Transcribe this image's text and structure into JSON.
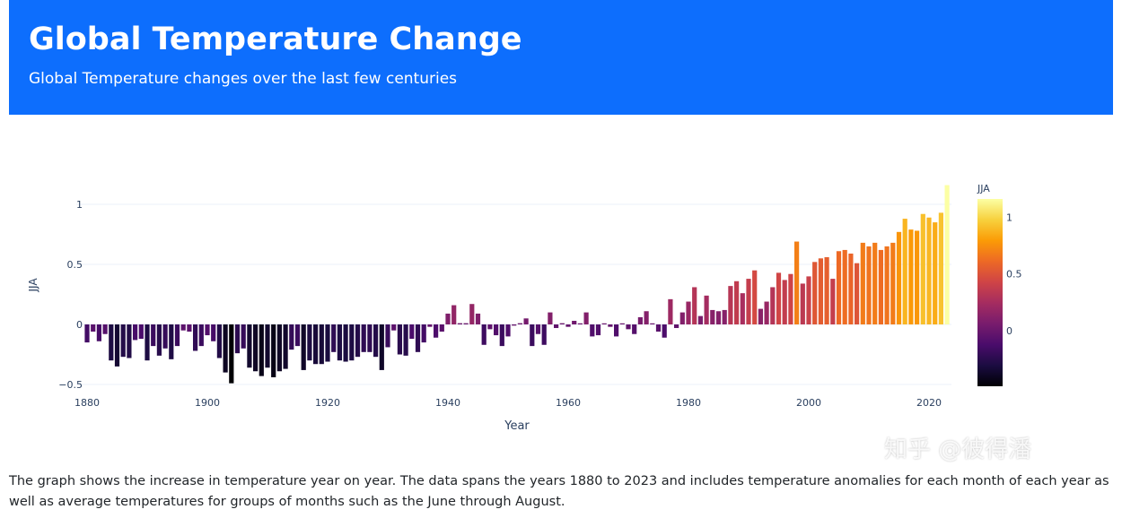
{
  "header": {
    "title": "Global Temperature Change",
    "subtitle": "Global Temperature changes over the last few centuries"
  },
  "description": "The graph shows the increase in temperature year on year. The data spans the years 1880 to 2023 and includes temperature anomalies for each month of each year as well as average temperatures for groups of months such as the June through August.",
  "watermark": "知乎 @彼得潘",
  "chart_data": {
    "type": "bar",
    "title": "",
    "xlabel": "Year",
    "ylabel": "JJA",
    "colorbar_title": "JJA",
    "colorscale": [
      "#000004",
      "#1b0c41",
      "#4a0c6b",
      "#781c6d",
      "#a52c60",
      "#cf4446",
      "#ed6925",
      "#fb9b06",
      "#f7d13d",
      "#fcffa4"
    ],
    "color_range": [
      -0.49,
      1.16
    ],
    "colorbar_ticks": [
      "0",
      "0.5",
      "1"
    ],
    "colorbar_tick_values": [
      0,
      0.5,
      1
    ],
    "xlim": [
      1878.3,
      2024.5
    ],
    "ylim": [
      -0.52,
      1.2
    ],
    "x_ticks": [
      "1880",
      "1900",
      "1920",
      "1940",
      "1960",
      "1980",
      "2000",
      "2020"
    ],
    "x_tick_values": [
      1880,
      1900,
      1920,
      1940,
      1960,
      1980,
      2000,
      2020
    ],
    "y_ticks": [
      "−0.5",
      "0",
      "0.5",
      "1"
    ],
    "y_tick_values": [
      -0.5,
      0,
      0.5,
      1
    ],
    "start_year": 1880,
    "values": [
      -0.15,
      -0.06,
      -0.14,
      -0.08,
      -0.3,
      -0.35,
      -0.27,
      -0.28,
      -0.13,
      -0.12,
      -0.3,
      -0.18,
      -0.26,
      -0.2,
      -0.29,
      -0.18,
      -0.05,
      -0.06,
      -0.22,
      -0.18,
      -0.09,
      -0.14,
      -0.28,
      -0.4,
      -0.49,
      -0.24,
      -0.2,
      -0.36,
      -0.39,
      -0.43,
      -0.36,
      -0.44,
      -0.39,
      -0.37,
      -0.21,
      -0.18,
      -0.38,
      -0.3,
      -0.33,
      -0.33,
      -0.31,
      -0.23,
      -0.3,
      -0.31,
      -0.3,
      -0.27,
      -0.23,
      -0.23,
      -0.27,
      -0.38,
      -0.19,
      -0.05,
      -0.25,
      -0.26,
      -0.12,
      -0.23,
      -0.15,
      -0.02,
      -0.11,
      -0.06,
      0.09,
      0.16,
      0.01,
      0.01,
      0.17,
      0.09,
      -0.17,
      -0.04,
      -0.09,
      -0.18,
      -0.1,
      -0.01,
      0.01,
      0.05,
      -0.18,
      -0.08,
      -0.17,
      0.1,
      -0.03,
      0.01,
      -0.02,
      0.03,
      0.0,
      0.1,
      -0.1,
      -0.09,
      0.0,
      -0.02,
      -0.1,
      0.0,
      -0.04,
      -0.08,
      0.06,
      0.11,
      0.0,
      -0.06,
      -0.11,
      0.21,
      -0.03,
      0.1,
      0.19,
      0.31,
      0.07,
      0.24,
      0.12,
      0.11,
      0.12,
      0.32,
      0.36,
      0.26,
      0.38,
      0.45,
      0.13,
      0.19,
      0.31,
      0.43,
      0.37,
      0.42,
      0.69,
      0.34,
      0.4,
      0.52,
      0.55,
      0.56,
      0.38,
      0.61,
      0.62,
      0.59,
      0.51,
      0.68,
      0.65,
      0.68,
      0.62,
      0.65,
      0.68,
      0.77,
      0.88,
      0.79,
      0.78,
      0.92,
      0.89,
      0.85,
      0.93,
      1.16
    ]
  }
}
